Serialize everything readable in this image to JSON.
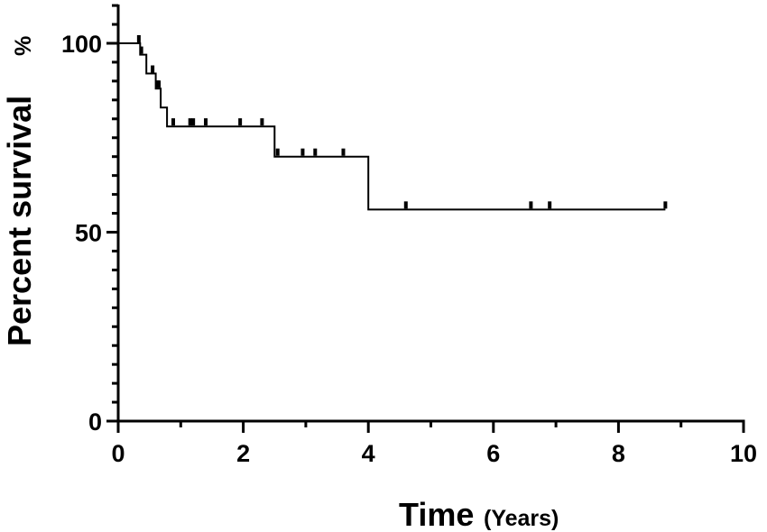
{
  "chart_data": {
    "type": "line",
    "subtype": "kaplan-meier-survival",
    "title": "",
    "xlabel": "Time",
    "xlabel_unit": "(Years)",
    "ylabel": "Percent survival",
    "ylabel_unit": "%",
    "xlim": [
      0,
      10
    ],
    "ylim": [
      0,
      100
    ],
    "x_ticks": [
      0,
      2,
      4,
      6,
      8,
      10
    ],
    "x_tick_labels": [
      "0",
      "2",
      "4",
      "6",
      "8",
      "10"
    ],
    "y_ticks": [
      0,
      50,
      100
    ],
    "y_tick_labels": [
      "0",
      "50",
      "100"
    ],
    "y_minor_step": 5,
    "x_minor_step": 1,
    "grid": false,
    "legend": "none",
    "line_color": "#000000",
    "series": [
      {
        "steps": [
          [
            0,
            100
          ],
          [
            0.35,
            100
          ],
          [
            0.35,
            97
          ],
          [
            0.45,
            97
          ],
          [
            0.45,
            92
          ],
          [
            0.6,
            92
          ],
          [
            0.6,
            88
          ],
          [
            0.68,
            88
          ],
          [
            0.68,
            83
          ],
          [
            0.78,
            83
          ],
          [
            0.78,
            78
          ],
          [
            2.5,
            78
          ],
          [
            2.5,
            70
          ],
          [
            4.0,
            70
          ],
          [
            4.0,
            56
          ],
          [
            8.75,
            56
          ]
        ],
        "censored": [
          [
            0.33,
            100
          ],
          [
            0.37,
            97
          ],
          [
            0.55,
            92
          ],
          [
            0.63,
            88
          ],
          [
            0.65,
            88
          ],
          [
            0.88,
            78
          ],
          [
            1.15,
            78
          ],
          [
            1.2,
            78
          ],
          [
            1.4,
            78
          ],
          [
            1.95,
            78
          ],
          [
            2.3,
            78
          ],
          [
            2.55,
            70
          ],
          [
            2.95,
            70
          ],
          [
            3.15,
            70
          ],
          [
            3.6,
            70
          ],
          [
            4.6,
            56
          ],
          [
            6.6,
            56
          ],
          [
            6.9,
            56
          ],
          [
            8.75,
            56
          ]
        ]
      }
    ]
  }
}
